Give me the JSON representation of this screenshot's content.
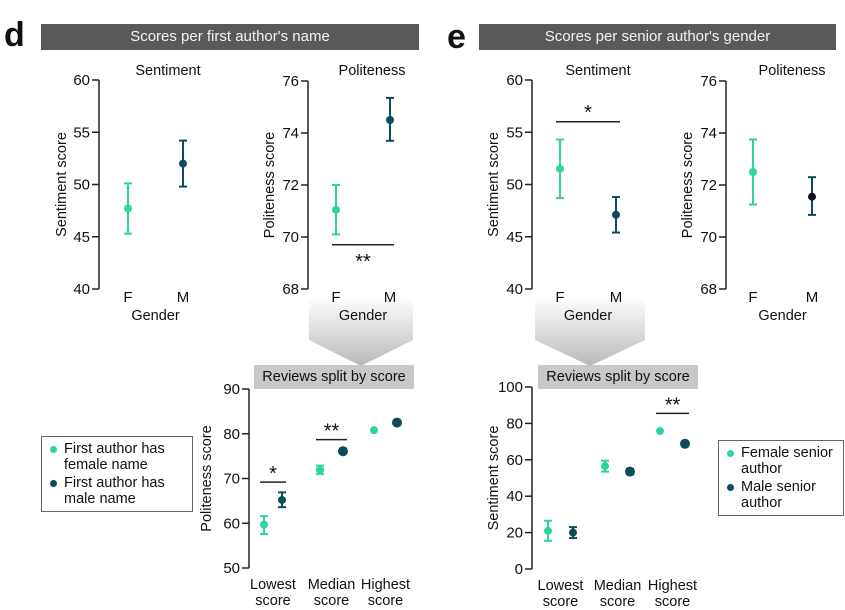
{
  "colors": {
    "female": "#2ed3a4",
    "male": "#0d4a5e",
    "male_dark": "#111111",
    "banner": "#58595b"
  },
  "panel_d": {
    "letter": "d",
    "banner": "Scores per first author's name",
    "subbanner": "Reviews split by score",
    "legend": [
      "First author has female name",
      "First author has male name"
    ]
  },
  "panel_e": {
    "letter": "e",
    "banner": "Scores per senior author's gender",
    "subbanner": "Reviews split by score",
    "legend": [
      "Female senior author",
      "Male senior author"
    ]
  },
  "chart_data": [
    {
      "id": "d-sentiment",
      "type": "scatter",
      "title": "Sentiment",
      "xlabel": "Gender",
      "ylabel": "Sentiment score",
      "categories": [
        "F",
        "M"
      ],
      "ylim": [
        40,
        60
      ],
      "yticks": [
        40,
        45,
        50,
        55,
        60
      ],
      "series": [
        {
          "name": "Female",
          "x": "F",
          "y": 47.7,
          "err_low": 45.3,
          "err_high": 50.1
        },
        {
          "name": "Male",
          "x": "M",
          "y": 52.0,
          "err_low": 49.8,
          "err_high": 54.2
        }
      ],
      "significance": []
    },
    {
      "id": "d-politeness",
      "type": "scatter",
      "title": "Politeness",
      "xlabel": "Gender",
      "ylabel": "Politeness score",
      "categories": [
        "F",
        "M"
      ],
      "ylim": [
        68,
        76
      ],
      "yticks": [
        68,
        70,
        72,
        74,
        76
      ],
      "series": [
        {
          "name": "Female",
          "x": "F",
          "y": 71.05,
          "err_low": 70.1,
          "err_high": 72.0
        },
        {
          "name": "Male",
          "x": "M",
          "y": 74.5,
          "err_low": 73.7,
          "err_high": 75.35
        }
      ],
      "significance": [
        {
          "label": "**",
          "y": 69.7,
          "position": "below"
        }
      ]
    },
    {
      "id": "e-sentiment",
      "type": "scatter",
      "title": "Sentiment",
      "xlabel": "Gender",
      "ylabel": "Sentiment score",
      "categories": [
        "F",
        "M"
      ],
      "ylim": [
        40,
        60
      ],
      "yticks": [
        40,
        45,
        50,
        55,
        60
      ],
      "series": [
        {
          "name": "Female",
          "x": "F",
          "y": 51.5,
          "err_low": 48.7,
          "err_high": 54.3
        },
        {
          "name": "Male",
          "x": "M",
          "y": 47.1,
          "err_low": 45.4,
          "err_high": 48.8
        }
      ],
      "significance": [
        {
          "label": "*",
          "y": 56.0,
          "position": "above"
        }
      ]
    },
    {
      "id": "e-politeness",
      "type": "scatter",
      "title": "Politeness",
      "xlabel": "Gender",
      "ylabel": "Politeness score",
      "categories": [
        "F",
        "M"
      ],
      "ylim": [
        68,
        76
      ],
      "yticks": [
        68,
        70,
        72,
        74,
        76
      ],
      "series": [
        {
          "name": "Female",
          "x": "F",
          "y": 72.5,
          "err_low": 71.25,
          "err_high": 73.75
        },
        {
          "name": "Male",
          "x": "M",
          "y": 71.55,
          "err_low": 70.85,
          "err_high": 72.3
        }
      ],
      "significance": []
    },
    {
      "id": "d-split",
      "type": "scatter",
      "title": "Reviews split by score",
      "xlabel": "",
      "ylabel": "Politeness score",
      "categories": [
        "Lowest score",
        "Median score",
        "Highest score"
      ],
      "ylim": [
        50,
        90
      ],
      "yticks": [
        50,
        60,
        70,
        80,
        90
      ],
      "series": [
        {
          "name": "First author has female name",
          "values": [
            59.7,
            71.9,
            80.8
          ],
          "err_low": [
            57.6,
            71.0,
            80.8
          ],
          "err_high": [
            61.6,
            72.9,
            80.8
          ]
        },
        {
          "name": "First author has male name",
          "values": [
            65.2,
            76.1,
            82.5
          ],
          "err_low": [
            63.6,
            75.6,
            82.1
          ],
          "err_high": [
            66.9,
            76.6,
            82.9
          ]
        }
      ],
      "significance": [
        {
          "category": "Lowest score",
          "label": "*",
          "y": 69.2
        },
        {
          "category": "Median score",
          "label": "**",
          "y": 78.7
        }
      ]
    },
    {
      "id": "e-split",
      "type": "scatter",
      "title": "Reviews split by score",
      "xlabel": "",
      "ylabel": "Sentiment score",
      "categories": [
        "Lowest score",
        "Median score",
        "Highest score"
      ],
      "ylim": [
        0,
        100
      ],
      "yticks": [
        0,
        20,
        40,
        60,
        80,
        100
      ],
      "series": [
        {
          "name": "Female senior author",
          "values": [
            21,
            56.5,
            75.8
          ],
          "err_low": [
            15.5,
            53.5,
            75.8
          ],
          "err_high": [
            26.5,
            59.5,
            75.8
          ]
        },
        {
          "name": "Male senior author",
          "values": [
            20,
            53.5,
            68.8
          ],
          "err_low": [
            17.0,
            52.0,
            67.8
          ],
          "err_high": [
            23.0,
            55.0,
            69.8
          ]
        }
      ],
      "significance": [
        {
          "category": "Highest score",
          "label": "**",
          "y": 85.5
        }
      ]
    }
  ]
}
